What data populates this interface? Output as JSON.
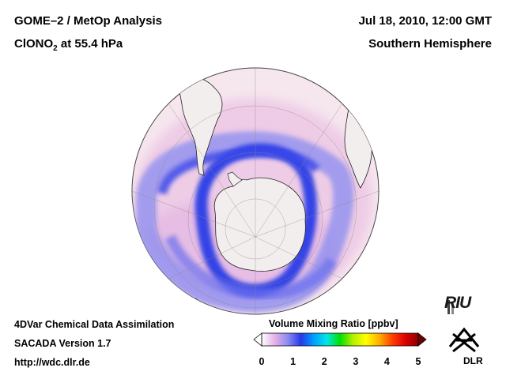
{
  "header": {
    "title_line1": "GOME–2 / MetOp Analysis",
    "species": "ClONO",
    "species_subscript": "2",
    "level_text": " at 55.4 hPa",
    "datetime": "Jul 18, 2010, 12:00 GMT",
    "region": "Southern Hemisphere"
  },
  "footer": {
    "line1": "4DVar Chemical Data Assimilation",
    "line2": "SACADA Version 1.7",
    "line3": "http://wdc.dlr.de"
  },
  "colorbar": {
    "title": "Volume Mixing Ratio [ppbv]",
    "ticks": [
      "0",
      "1",
      "2",
      "3",
      "4",
      "5"
    ],
    "range": [
      0,
      5
    ],
    "colors": [
      "#ffffff",
      "#e6b0e6",
      "#8c8cf0",
      "#2838e8",
      "#00a0ff",
      "#00e6e6",
      "#00e000",
      "#b4f000",
      "#ffff00",
      "#ffb000",
      "#ff4000",
      "#e00000",
      "#8c0000"
    ]
  },
  "logos": {
    "riu": "RIU",
    "dlr": "DLR"
  },
  "map": {
    "projection": "orthographic-south-polar",
    "land_color": "#f2eeee",
    "ocean_background": "#f5e8ee",
    "ring_color": "#2c3ce6"
  }
}
